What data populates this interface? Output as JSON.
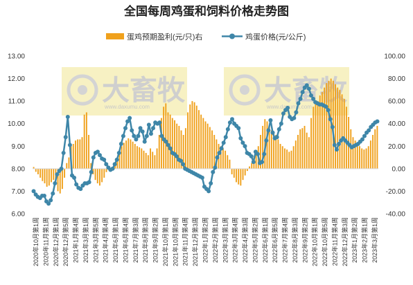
{
  "chart_data": {
    "type": "bar+line",
    "title": "全国每周鸡蛋和饲料价格走势图",
    "watermark": {
      "brand": "大畜牧",
      "url": "www.daxumu.com"
    },
    "legend": [
      {
        "name": "蛋鸡预期盈利(元/只)右",
        "color": "#F0A11C"
      },
      {
        "name": "鸡蛋价格(元/公斤)",
        "color": "#3E86A8"
      }
    ],
    "left_axis": {
      "ylim": [
        6,
        13
      ],
      "ticks": [
        "13.00",
        "12.00",
        "11.00",
        "10.00",
        "9.00",
        "8.00",
        "7.00",
        "6.00"
      ]
    },
    "right_axis": {
      "ylim": [
        -40,
        100
      ],
      "ticks": [
        "100.00",
        "80.00",
        "60.00",
        "40.00",
        "20.00",
        "0.00",
        "-20.00",
        "-40.00"
      ]
    },
    "x_tick_labels": [
      "2020年10月第1周",
      "2020年11月第1周",
      "2020年12月第1周",
      "2020年12月第5周",
      "2021年1月第4周",
      "2021年3月第1周",
      "2021年3月第5周",
      "2021年4月第4周",
      "2021年6月第1周",
      "2021年6月第4周",
      "2021年7月第3周",
      "2021年8月第3周",
      "2021年9月第2周",
      "2021年10月第1周",
      "2021年10月第5周",
      "2021年11月第4周",
      "2021年12月第3周",
      "2022年1月第2周",
      "2022年2月第1周",
      "2022年3月第1周",
      "2022年3月第4周",
      "2022年4月第3周",
      "2022年5月第2周",
      "2022年6月第1周",
      "2022年6月第5周",
      "2022年7月第4周",
      "2022年8月第3周",
      "2022年9月第2周",
      "2022年10月第1周",
      "2022年10月第5周",
      "2022年11月第4周",
      "2022年12月第3周",
      "2023年1月第2周",
      "2023年2月第1周",
      "2023年3月第1周"
    ],
    "series": [
      {
        "name": "蛋鸡预期盈利(元/只)右",
        "type": "bar",
        "axis": "right",
        "values": [
          1.5,
          -2.8,
          -5.0,
          -8.0,
          -11.0,
          -13.0,
          -16.0,
          -15.0,
          -12.0,
          -10.0,
          -14.0,
          -20.0,
          -22.0,
          -18.0,
          -8.0,
          5.0,
          10.0,
          20.0,
          22.0,
          25.0,
          26.0,
          26.0,
          28.0,
          48.0,
          50.0,
          30.0,
          5.0,
          -5.0,
          -10.0,
          -13.0,
          -15.0,
          -12.0,
          -8.0,
          -3.0,
          -1.0,
          0.0,
          1.0,
          3.0,
          8.0,
          14.0,
          20.0,
          23.0,
          25.0,
          27.0,
          26.0,
          24.0,
          22.0,
          20.0,
          19.0,
          18.0,
          16.0,
          14.0,
          12.0,
          18.0,
          15.0,
          12.0,
          18.0,
          30.0,
          45.0,
          55.0,
          58.0,
          50.0,
          48.0,
          45.0,
          43.0,
          40.0,
          38.0,
          34.0,
          30.0,
          36.0,
          50.0,
          57.0,
          60.0,
          59.0,
          56.0,
          52.0,
          48.0,
          45.0,
          42.0,
          40.0,
          37.0,
          34.0,
          30.0,
          26.0,
          22.0,
          20.0,
          18.0,
          16.0,
          12.0,
          8.0,
          -5.0,
          -8.0,
          -12.0,
          -14.0,
          -15.0,
          -10.0,
          -6.0,
          -2.0,
          2.0,
          5.0,
          10.0,
          15.0,
          20.0,
          30.0,
          38.0,
          44.0,
          42.0,
          38.0,
          34.0,
          32.0,
          30.0,
          26.0,
          22.0,
          20.0,
          18.0,
          17.0,
          15.0,
          16.0,
          20.0,
          25.0,
          30.0,
          35.0,
          36.0,
          38.0,
          32.0,
          28.0,
          45.0,
          55.0,
          58.0,
          60.0,
          65.0,
          68.0,
          72.0,
          76.0,
          78.0,
          80.0,
          78.0,
          75.0,
          72.0,
          70.0,
          66.0,
          62.0,
          55.0,
          46.0,
          35.0,
          28.0,
          25.0,
          22.0,
          20.0,
          18.0,
          17.0,
          18.0,
          20.0,
          25.0,
          30.0,
          35.0,
          38.0
        ]
      },
      {
        "name": "鸡蛋价格(元/公斤)",
        "type": "line",
        "axis": "left",
        "values": [
          7.0,
          6.85,
          6.75,
          6.7,
          6.8,
          6.8,
          6.55,
          6.45,
          6.6,
          6.9,
          7.35,
          7.75,
          7.9,
          8.0,
          8.7,
          9.4,
          10.3,
          9.05,
          7.7,
          7.6,
          7.3,
          7.15,
          7.1,
          7.25,
          7.35,
          7.35,
          7.4,
          7.85,
          8.5,
          8.7,
          8.75,
          8.6,
          8.45,
          8.4,
          8.2,
          8.05,
          7.95,
          8.0,
          8.2,
          8.4,
          8.7,
          9.1,
          9.45,
          9.8,
          10.1,
          10.25,
          9.7,
          9.45,
          9.3,
          9.45,
          9.8,
          9.65,
          9.2,
          9.45,
          9.95,
          9.55,
          9.8,
          10.05,
          10.0,
          10.05,
          9.45,
          9.3,
          9.2,
          9.05,
          8.9,
          8.7,
          8.65,
          8.55,
          8.4,
          8.35,
          8.2,
          8.0,
          7.95,
          7.9,
          7.85,
          7.8,
          7.75,
          7.7,
          7.65,
          7.6,
          7.2,
          7.1,
          7.0,
          7.35,
          7.85,
          8.05,
          8.5,
          8.7,
          8.9,
          9.15,
          9.4,
          9.75,
          10.05,
          10.2,
          10.0,
          9.9,
          9.8,
          9.35,
          9.15,
          9.0,
          8.7,
          8.65,
          8.55,
          8.3,
          8.75,
          8.65,
          8.25,
          8.3,
          8.65,
          9.25,
          9.7,
          10.15,
          9.6,
          9.35,
          9.4,
          9.75,
          10.0,
          10.45,
          10.6,
          10.7,
          10.3,
          10.2,
          10.25,
          10.5,
          10.9,
          11.1,
          11.4,
          11.6,
          11.7,
          11.55,
          11.25,
          11.1,
          10.95,
          10.9,
          10.85,
          10.85,
          10.8,
          10.75,
          10.6,
          10.2,
          9.85,
          9.05,
          8.85,
          9.1,
          9.25,
          9.35,
          9.25,
          9.15,
          9.05,
          8.95,
          9.0,
          9.05,
          9.1,
          9.2,
          9.3,
          9.45,
          9.6,
          9.7,
          9.85,
          9.95,
          10.05,
          10.1
        ]
      }
    ]
  }
}
